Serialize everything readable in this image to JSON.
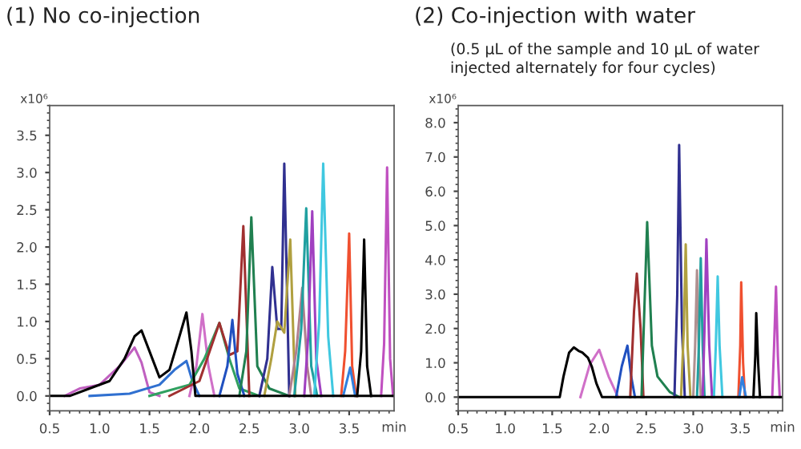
{
  "chart_data": [
    {
      "type": "line",
      "title": "(1) No co-injection",
      "ylabel": "x10⁶",
      "xlabel": "min",
      "xlim": [
        0.5,
        3.95
      ],
      "ylim": [
        -0.2,
        3.9
      ],
      "xticks": [
        0.5,
        {
          "value": 1,
          "label": "1.0"
        },
        1.5,
        {
          "value": 2,
          "label": "2.0"
        },
        2.5,
        {
          "value": 3,
          "label": "3.0"
        },
        3.5
      ],
      "yticks": [
        {
          "value": 0,
          "label": "0.0"
        },
        0.5,
        {
          "value": 1,
          "label": "1.0"
        },
        1.5,
        {
          "value": 2,
          "label": "2.0"
        },
        2.5,
        {
          "value": 3,
          "label": "3.0"
        },
        3.5
      ],
      "line_style": "solid",
      "marker": "none",
      "series": [
        {
          "color": "#c060c0",
          "x": [
            0.65,
            0.8,
            1.0,
            1.2,
            1.35,
            1.42,
            1.5,
            1.6
          ],
          "values": [
            0,
            0.1,
            0.15,
            0.4,
            0.65,
            0.45,
            0.05,
            0
          ]
        },
        {
          "color": "#3070d0",
          "x": [
            0.9,
            1.3,
            1.6,
            1.75,
            1.87,
            1.93,
            2.0
          ],
          "values": [
            0,
            0.03,
            0.15,
            0.35,
            0.47,
            0.2,
            0
          ]
        },
        {
          "color": "#d070c8",
          "x": [
            1.9,
            1.97,
            2.03,
            2.09,
            2.15
          ],
          "values": [
            0,
            0.4,
            1.1,
            0.4,
            0
          ]
        },
        {
          "color": "#30a060",
          "x": [
            1.5,
            1.9,
            2.05,
            2.2,
            2.3,
            2.4,
            2.6
          ],
          "values": [
            0,
            0.15,
            0.5,
            0.98,
            0.5,
            0.1,
            0
          ]
        },
        {
          "color": "#a03030",
          "x": [
            1.7,
            2.0,
            2.2,
            2.3,
            2.38,
            2.44,
            2.5
          ],
          "values": [
            0,
            0.2,
            0.98,
            0.55,
            0.6,
            2.28,
            0
          ]
        },
        {
          "color": "#2050c0",
          "x": [
            2.2,
            2.28,
            2.33,
            2.38,
            2.45
          ],
          "values": [
            0,
            0.4,
            1.02,
            0.3,
            0
          ]
        },
        {
          "color": "#208050",
          "x": [
            2.4,
            2.47,
            2.52,
            2.58,
            2.7,
            2.9
          ],
          "values": [
            0,
            0.6,
            2.4,
            0.4,
            0.1,
            0
          ]
        },
        {
          "color": "#303090",
          "x": [
            2.6,
            2.68,
            2.73,
            2.78,
            2.82,
            2.85,
            2.9
          ],
          "values": [
            0,
            0.5,
            1.73,
            0.9,
            0.9,
            3.12,
            0
          ]
        },
        {
          "color": "#b0a040",
          "x": [
            2.65,
            2.72,
            2.78,
            2.85,
            2.91,
            2.96
          ],
          "values": [
            0,
            0.5,
            1.0,
            0.85,
            2.1,
            0
          ]
        },
        {
          "color": "#b08090",
          "x": [
            2.9,
            2.97,
            3.03,
            3.08,
            3.12
          ],
          "values": [
            0,
            0.6,
            1.45,
            0.4,
            0
          ]
        },
        {
          "color": "#20a0a0",
          "x": [
            2.95,
            3.02,
            3.07,
            3.12,
            3.18
          ],
          "values": [
            0,
            0.9,
            2.52,
            0.4,
            0
          ]
        },
        {
          "color": "#a040c0",
          "x": [
            3.05,
            3.09,
            3.13,
            3.17,
            3.22
          ],
          "values": [
            0,
            0.8,
            2.48,
            0.5,
            0
          ]
        },
        {
          "color": "#40c8e0",
          "x": [
            3.15,
            3.2,
            3.24,
            3.29,
            3.34
          ],
          "values": [
            0,
            1.0,
            3.12,
            0.8,
            0
          ]
        },
        {
          "color": "#f05030",
          "x": [
            3.42,
            3.46,
            3.5,
            3.53,
            3.57
          ],
          "values": [
            0,
            0.6,
            2.18,
            0.4,
            0
          ]
        },
        {
          "color": "#3080e0",
          "x": [
            3.44,
            3.51,
            3.56
          ],
          "values": [
            0,
            0.38,
            0
          ]
        },
        {
          "color": "#000000",
          "x": [
            3.58,
            3.62,
            3.65,
            3.68,
            3.72
          ],
          "values": [
            0,
            0.6,
            2.1,
            0.4,
            0
          ]
        },
        {
          "color": "#c050c0",
          "x": [
            3.82,
            3.85,
            3.88,
            3.91,
            3.94
          ],
          "values": [
            0,
            0.7,
            3.07,
            0.5,
            0
          ]
        },
        {
          "color": "#000000",
          "x": [
            0.5,
            0.7,
            0.9,
            1.1,
            1.25,
            1.35,
            1.42,
            1.5,
            1.6,
            1.7,
            1.8,
            1.87,
            1.92,
            1.96,
            2.1,
            3.95
          ],
          "values": [
            0,
            0,
            0.1,
            0.2,
            0.5,
            0.8,
            0.88,
            0.6,
            0.25,
            0.35,
            0.8,
            1.12,
            0.6,
            0,
            0,
            0
          ]
        }
      ]
    },
    {
      "type": "line",
      "title": "(2) Co-injection with water",
      "subtitle": "(0.5 µL of the sample and 10 µL of water\ninjected alternately for four cycles)",
      "ylabel": "x10⁶",
      "xlabel": "min",
      "xlim": [
        0.5,
        3.95
      ],
      "ylim": [
        -0.4,
        8.5
      ],
      "xticks": [
        0.5,
        {
          "value": 1,
          "label": "1.0"
        },
        1.5,
        {
          "value": 2,
          "label": "2.0"
        },
        2.5,
        {
          "value": 3,
          "label": "3.0"
        },
        3.5
      ],
      "yticks": [
        {
          "value": 0,
          "label": "0.0"
        },
        {
          "value": 1,
          "label": "1.0"
        },
        {
          "value": 2,
          "label": "2.0"
        },
        {
          "value": 3,
          "label": "3.0"
        },
        {
          "value": 4,
          "label": "4.0"
        },
        {
          "value": 5,
          "label": "5.0"
        },
        {
          "value": 6,
          "label": "6.0"
        },
        {
          "value": 7,
          "label": "7.0"
        },
        {
          "value": 8,
          "label": "8.0"
        }
      ],
      "line_style": "solid",
      "marker": "none",
      "series": [
        {
          "color": "#d070c8",
          "x": [
            1.8,
            1.9,
            2.0,
            2.1,
            2.2
          ],
          "values": [
            0,
            0.95,
            1.38,
            0.6,
            0
          ]
        },
        {
          "color": "#2050c0",
          "x": [
            2.18,
            2.24,
            2.3,
            2.34,
            2.38
          ],
          "values": [
            0,
            0.9,
            1.5,
            0.6,
            0
          ]
        },
        {
          "color": "#a03030",
          "x": [
            2.33,
            2.37,
            2.4,
            2.44,
            2.47
          ],
          "values": [
            0,
            2.5,
            3.6,
            2.0,
            0
          ]
        },
        {
          "color": "#208050",
          "x": [
            2.45,
            2.51,
            2.56,
            2.62,
            2.75,
            2.85
          ],
          "values": [
            0,
            5.1,
            1.5,
            0.6,
            0.15,
            0
          ]
        },
        {
          "color": "#303090",
          "x": [
            2.8,
            2.83,
            2.85,
            2.88,
            2.91
          ],
          "values": [
            0,
            3.0,
            7.35,
            2.0,
            0
          ]
        },
        {
          "color": "#b0a040",
          "x": [
            2.87,
            2.9,
            2.92,
            2.94,
            2.97
          ],
          "values": [
            0,
            2.0,
            4.45,
            1.5,
            0
          ]
        },
        {
          "color": "#b09090",
          "x": [
            3.0,
            3.02,
            3.04,
            3.06,
            3.08
          ],
          "values": [
            0,
            1.5,
            3.7,
            1.2,
            0
          ]
        },
        {
          "color": "#20a0a0",
          "x": [
            3.04,
            3.06,
            3.08,
            3.1,
            3.12
          ],
          "values": [
            0,
            1.5,
            4.05,
            1.5,
            0
          ]
        },
        {
          "color": "#a040c0",
          "x": [
            3.1,
            3.12,
            3.14,
            3.17,
            3.2
          ],
          "values": [
            0,
            2.0,
            4.6,
            1.5,
            0
          ]
        },
        {
          "color": "#40c8e0",
          "x": [
            3.22,
            3.24,
            3.26,
            3.28,
            3.31
          ],
          "values": [
            0,
            1.5,
            3.52,
            1.5,
            0
          ]
        },
        {
          "color": "#f05030",
          "x": [
            3.48,
            3.5,
            3.51,
            3.53,
            3.55
          ],
          "values": [
            0,
            1.5,
            3.35,
            1.0,
            0
          ]
        },
        {
          "color": "#3080e0",
          "x": [
            3.49,
            3.52,
            3.56
          ],
          "values": [
            0,
            0.58,
            0
          ]
        },
        {
          "color": "#000000",
          "x": [
            3.64,
            3.66,
            3.67,
            3.69,
            3.71
          ],
          "values": [
            0,
            1.2,
            2.45,
            1.0,
            0
          ]
        },
        {
          "color": "#c050c0",
          "x": [
            3.84,
            3.86,
            3.88,
            3.9,
            3.92
          ],
          "values": [
            0,
            1.5,
            3.22,
            1.2,
            0
          ]
        },
        {
          "color": "#000000",
          "x": [
            0.5,
            1.58,
            1.62,
            1.68,
            1.73,
            1.78,
            1.82,
            1.88,
            1.92,
            1.97,
            2.03,
            2.1,
            3.95
          ],
          "values": [
            0,
            0,
            0.6,
            1.3,
            1.45,
            1.35,
            1.3,
            1.15,
            0.9,
            0.4,
            0,
            0,
            0
          ]
        }
      ]
    }
  ]
}
